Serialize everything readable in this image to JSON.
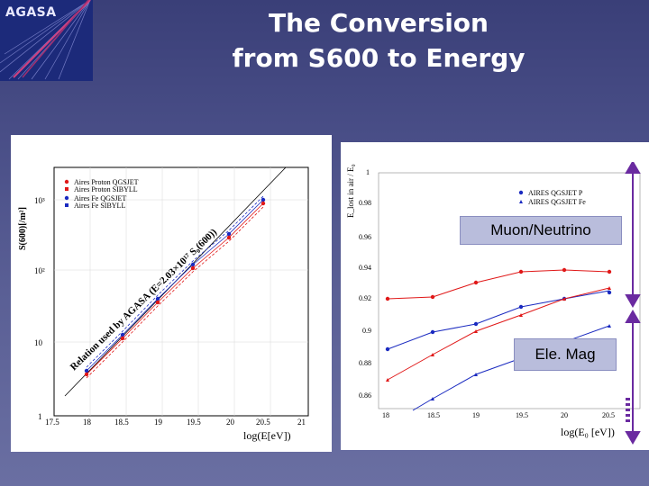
{
  "logo": {
    "text": "AGASA"
  },
  "title": {
    "line1": "The Conversion",
    "line2": "from S600 to Energy"
  },
  "left_plot": {
    "ylabel": "S(600)[/m²]",
    "xlabel": "log(E[eV])",
    "xticks": [
      "17.5",
      "18",
      "18.5",
      "19",
      "19.5",
      "20",
      "20.5",
      "21"
    ],
    "yticks": [
      "1",
      "10",
      "10²",
      "10³"
    ],
    "legend": [
      "Aires Proton QGSJET",
      "Aires Proton SIBYLL",
      "Aires Fe QGSJET",
      "Aires Fe SIBYLL"
    ],
    "relation": "Relation used by AGASA (E=2.03×10¹⁷ S₀(600))"
  },
  "right_plot": {
    "ylabel": "E_lost in air / E₀",
    "xlabel": "log(E₀ [eV])",
    "xticks": [
      "18",
      "18.5",
      "19",
      "19.5",
      "20",
      "20.5"
    ],
    "yticks": [
      "1",
      "0.98",
      "0.96",
      "0.94",
      "0.92",
      "0.9",
      "0.88",
      "0.86"
    ],
    "legend": [
      "AIRES QGSJET P",
      "AIRES QGSJET Fe"
    ]
  },
  "labels": {
    "muon": "Muon/Neutrino",
    "em": "Ele. Mag"
  },
  "colors": {
    "blue": "#1a2ac0",
    "red": "#e01818",
    "arrow": "#6a2aa0"
  }
}
